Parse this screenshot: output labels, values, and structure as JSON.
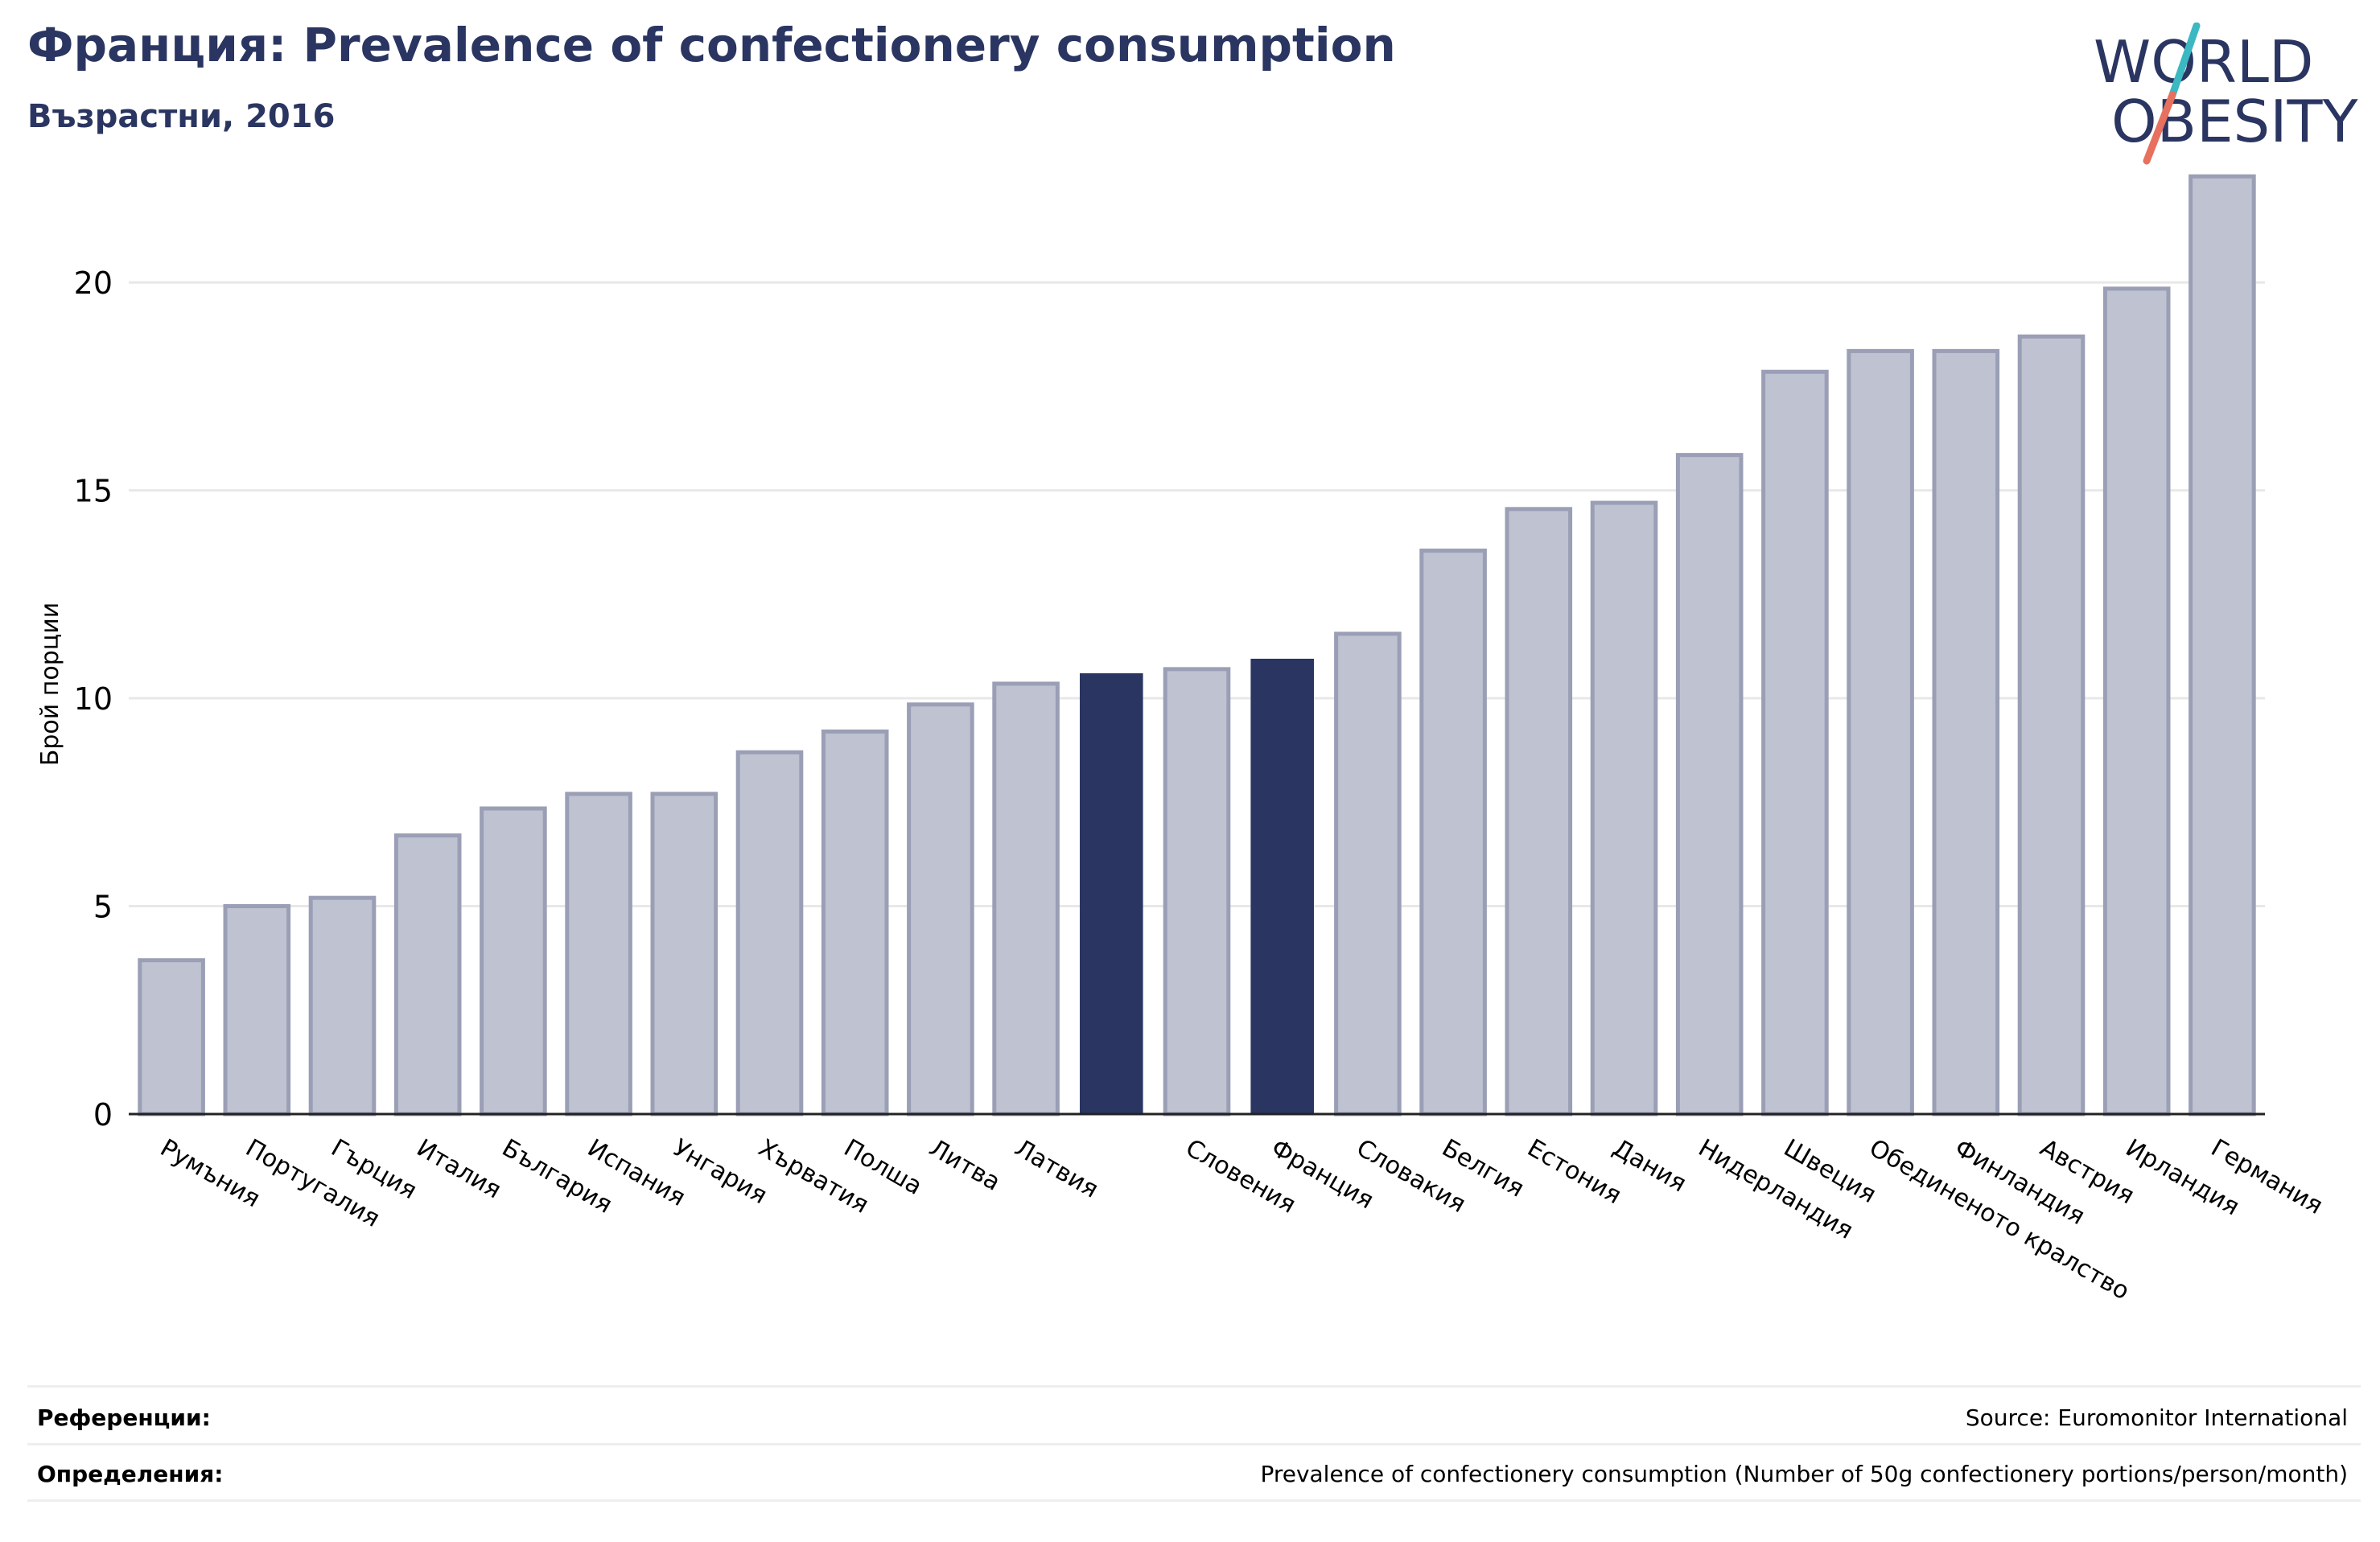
{
  "header": {
    "title": "Франция: Prevalence of confectionery consumption",
    "subtitle": "Възрастни, 2016"
  },
  "logo": {
    "line1": "WORLD",
    "line2": "OBESITY",
    "colors": {
      "text": "#2a3561",
      "slash_top": "#3bb8c1",
      "slash_bottom": "#e8705e"
    }
  },
  "colors": {
    "bar_default": "#bfc2d0",
    "bar_default_stroke": "#9a9fb6",
    "bar_highlight": "#2a3561",
    "grid": "#e8e8e8",
    "axis": "#222222"
  },
  "chart_data": {
    "type": "bar",
    "ylabel": "Брой порции",
    "xlabel": "",
    "ylim": [
      0,
      23
    ],
    "yticks": [
      0,
      5,
      10,
      15,
      20
    ],
    "grid": true,
    "categories": [
      "Румъния",
      "Португалия",
      "Гърция",
      "Италия",
      "България",
      "Испания",
      "Унгария",
      "Хърватия",
      "Полша",
      "Литва",
      "Латвия",
      "",
      "Словения",
      "Франция",
      "Словакия",
      "Белгия",
      "Естония",
      "Дания",
      "Нидерландия",
      "Швеция",
      "Обединеното кралство",
      "Финландия",
      "Австрия",
      "Ирландия",
      "Германия"
    ],
    "values": [
      3.7,
      5.0,
      5.2,
      6.7,
      7.35,
      7.7,
      7.7,
      8.7,
      9.2,
      9.85,
      10.35,
      10.6,
      10.7,
      10.95,
      11.55,
      13.55,
      14.55,
      14.7,
      15.85,
      17.85,
      18.35,
      18.35,
      18.7,
      19.85,
      22.55
    ],
    "highlighted": [
      11,
      13
    ]
  },
  "footer": {
    "references_label": "Референции:",
    "references_value": "Source: Euromonitor International",
    "definitions_label": "Определения:",
    "definitions_value": "Prevalence of confectionery consumption (Number of 50g confectionery portions/person/month)"
  }
}
